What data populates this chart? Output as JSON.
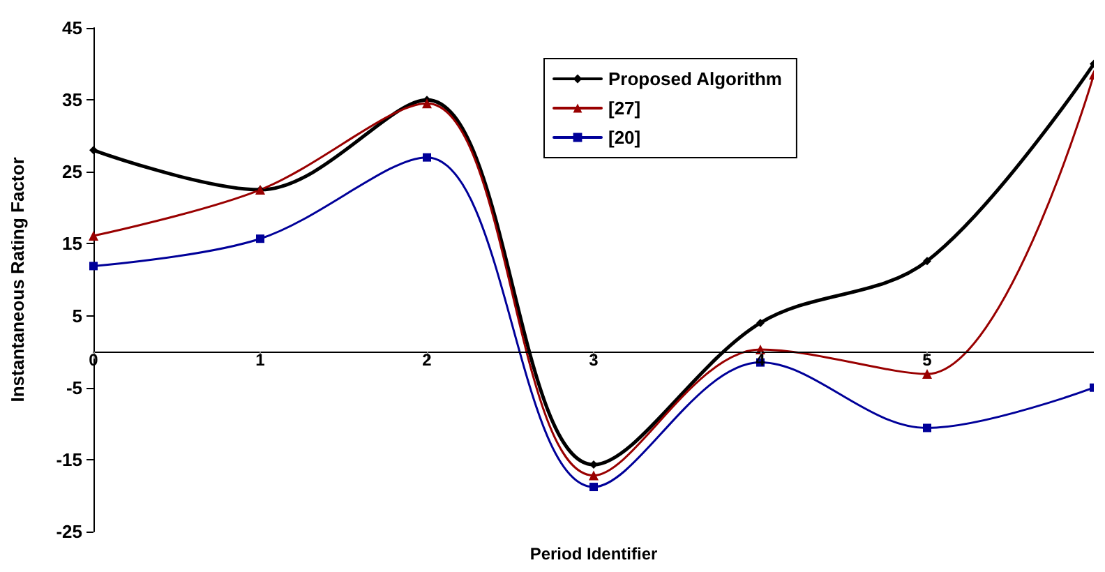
{
  "chart_data": {
    "type": "line",
    "xlabel": "Period Identifier",
    "ylabel": "Instantaneous Rating Factor",
    "x": [
      0,
      1,
      2,
      3,
      4,
      5,
      6
    ],
    "series": [
      {
        "name": "Proposed Algorithm",
        "color": "#000000",
        "marker": "diamond",
        "values": [
          28,
          22.5,
          35,
          -15.7,
          4,
          12.6,
          40
        ]
      },
      {
        "name": "[27]",
        "color": "#990000",
        "marker": "triangle",
        "values": [
          16.1,
          22.5,
          34.5,
          -17.2,
          0.3,
          -3.1,
          38.5
        ]
      },
      {
        "name": "[20]",
        "color": "#000099",
        "marker": "square",
        "values": [
          11.9,
          15.7,
          27,
          -18.8,
          -1.5,
          -10.6,
          -5
        ]
      }
    ],
    "xlim": [
      0,
      6
    ],
    "xticks": [
      0,
      1,
      2,
      3,
      4,
      5
    ],
    "ylim": [
      -25,
      45
    ],
    "yticks": [
      -25,
      -15,
      -5,
      5,
      15,
      25,
      35,
      45
    ],
    "grid": false,
    "legend": "top",
    "line_style": "solid"
  }
}
